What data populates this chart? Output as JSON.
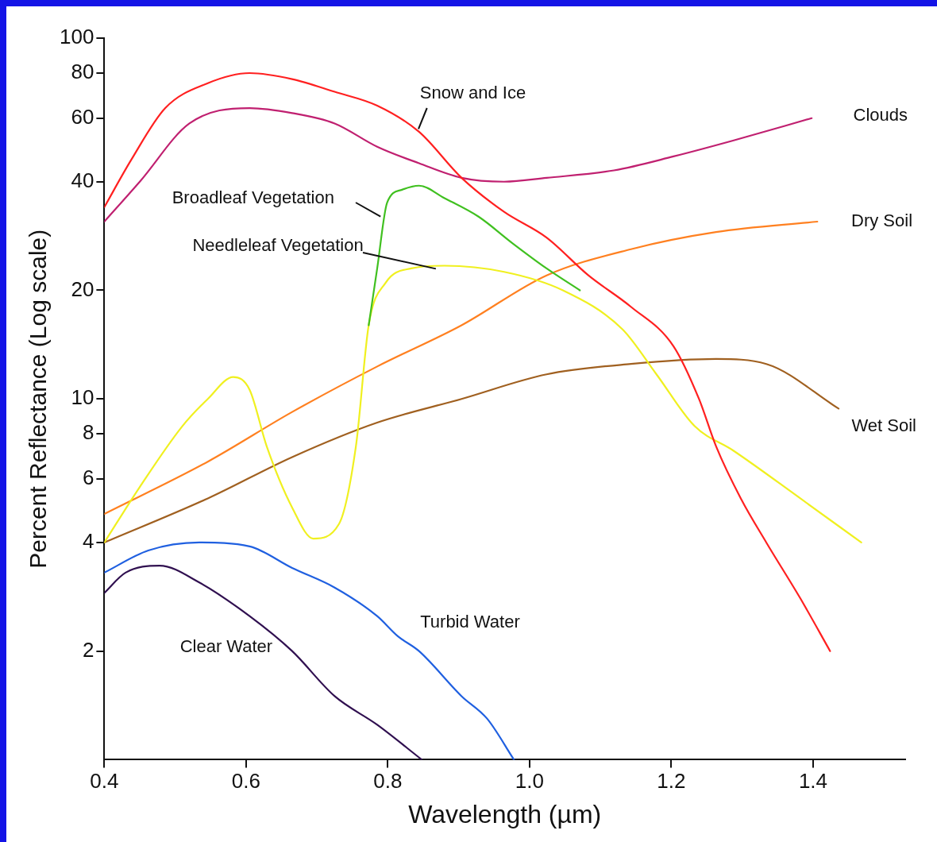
{
  "chart_data": {
    "type": "line",
    "xlabel": "Wavelength (µm)",
    "ylabel": "Percent Reflectance (Log scale)",
    "log": "y",
    "grid": false,
    "legend": false,
    "marker": "none",
    "line_style": "solid",
    "xlim": [
      0.4,
      1.53
    ],
    "xticks": [
      {
        "value": 0.4,
        "label": "0.4"
      },
      {
        "value": 0.6,
        "label": "0.6"
      },
      {
        "value": 0.8,
        "label": "0.8"
      },
      {
        "value": 1.0,
        "label": "1.0"
      },
      {
        "value": 1.2,
        "label": "1.2"
      },
      {
        "value": 1.4,
        "label": "1.4"
      }
    ],
    "ylim": [
      1,
      100
    ],
    "yticks": [
      2,
      4,
      6,
      8,
      10,
      20,
      40,
      60,
      80,
      100
    ],
    "series": [
      {
        "name": "Snow and Ice",
        "color": "#ff2020",
        "x": [
          0.4,
          0.438,
          0.486,
          0.546,
          0.605,
          0.665,
          0.725,
          0.785,
          0.844,
          0.904,
          0.964,
          1.024,
          1.083,
          1.143,
          1.203,
          1.239,
          1.263,
          1.298,
          1.334,
          1.382,
          1.424
        ],
        "values": [
          34,
          46,
          64,
          75,
          80,
          77,
          71,
          65,
          55,
          41,
          33,
          28,
          22,
          18,
          14,
          10,
          7.4,
          5.3,
          4,
          2.8,
          2
        ]
      },
      {
        "name": "Clouds",
        "color": "#c02070",
        "x": [
          0.4,
          0.45,
          0.52,
          0.605,
          0.665,
          0.725,
          0.785,
          0.844,
          0.904,
          0.964,
          1.024,
          1.119,
          1.203,
          1.287,
          1.398
        ],
        "values": [
          31,
          40,
          58,
          64,
          62,
          58,
          50,
          45,
          41,
          40,
          41,
          43,
          47,
          52,
          60
        ]
      },
      {
        "name": "Broadleaf Vegetation",
        "color": "#40c020",
        "x": [
          0.773,
          0.785,
          0.799,
          0.82,
          0.844,
          0.88,
          0.928,
          0.976,
          1.024,
          1.071
        ],
        "values": [
          16,
          23,
          35,
          38,
          39,
          36,
          32,
          27,
          23,
          20
        ]
      },
      {
        "name": "Needleleaf Vegetation",
        "color": "#f0f020",
        "x": [
          0.4,
          0.45,
          0.51,
          0.546,
          0.582,
          0.605,
          0.629,
          0.665,
          0.695,
          0.731,
          0.755,
          0.773,
          0.797,
          0.833,
          0.88,
          0.964,
          1.047,
          1.131,
          1.179,
          1.233,
          1.287,
          1.382,
          1.468
        ],
        "values": [
          4,
          5.7,
          8.4,
          10,
          11.5,
          10.6,
          7.4,
          5,
          4.1,
          4.5,
          7.4,
          16,
          21,
          23,
          23.4,
          22.5,
          20,
          15.6,
          11.7,
          8.4,
          7.2,
          5.3,
          4
        ]
      },
      {
        "name": "Dry Soil",
        "color": "#ff8020",
        "x": [
          0.4,
          0.546,
          0.665,
          0.785,
          0.904,
          1.024,
          1.143,
          1.263,
          1.406
        ],
        "values": [
          4.8,
          6.7,
          9.2,
          12.3,
          16,
          22,
          26,
          29,
          31
        ]
      },
      {
        "name": "Wet Soil",
        "color": "#a06020",
        "x": [
          0.4,
          0.546,
          0.665,
          0.785,
          0.904,
          1.024,
          1.143,
          1.263,
          1.334,
          1.436
        ],
        "values": [
          4,
          5.3,
          6.9,
          8.6,
          10,
          11.7,
          12.5,
          12.9,
          12.5,
          9.4
        ]
      },
      {
        "name": "Turbid Water",
        "color": "#2060e0",
        "x": [
          0.4,
          0.462,
          0.534,
          0.605,
          0.665,
          0.725,
          0.785,
          0.814,
          0.844,
          0.904,
          0.94,
          0.978
        ],
        "values": [
          3.3,
          3.8,
          4,
          3.9,
          3.4,
          3,
          2.5,
          2.2,
          2,
          1.5,
          1.3,
          1
        ]
      },
      {
        "name": "Clear Water",
        "color": "#301050",
        "x": [
          0.4,
          0.43,
          0.478,
          0.534,
          0.605,
          0.665,
          0.725,
          0.785,
          0.848
        ],
        "values": [
          2.9,
          3.3,
          3.45,
          3.1,
          2.5,
          2,
          1.5,
          1.25,
          1
        ]
      }
    ]
  }
}
